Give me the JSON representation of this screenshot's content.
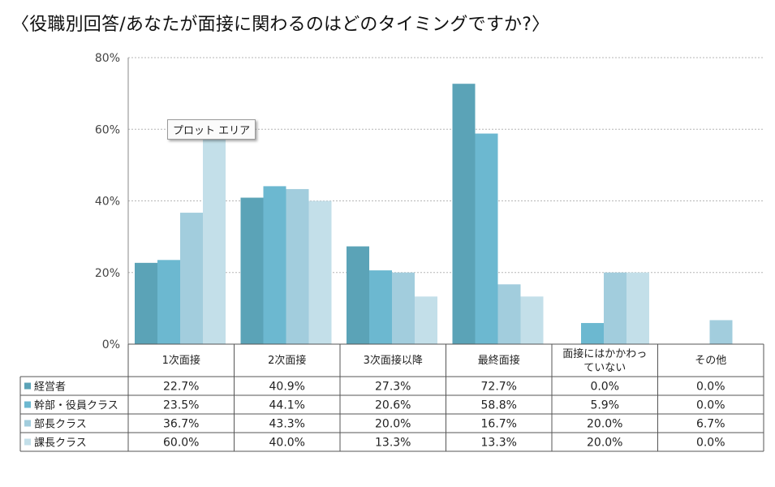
{
  "title": "〈役職別回答/あなたが面接に関わるのはどのタイミングですか?〉",
  "tooltip": "プロット エリア",
  "chart_data": {
    "type": "bar",
    "title": "〈役職別回答/あなたが面接に関わるのはどのタイミングですか?〉",
    "categories": [
      "1次面接",
      "2次面接",
      "3次面接以降",
      "最終面接",
      "面接にはかかわっていない",
      "その他"
    ],
    "category_lines": [
      [
        "1次面接"
      ],
      [
        "2次面接"
      ],
      [
        "3次面接以降"
      ],
      [
        "最終面接"
      ],
      [
        "面接にはかかわっ",
        "ていない"
      ],
      [
        "その他"
      ]
    ],
    "series": [
      {
        "name": "経営者",
        "color": "#5ba3b7",
        "values": [
          22.7,
          40.9,
          27.3,
          72.7,
          0.0,
          0.0
        ]
      },
      {
        "name": "幹部・役員クラス",
        "color": "#6cb8d0",
        "values": [
          23.5,
          44.1,
          20.6,
          58.8,
          5.9,
          0.0
        ]
      },
      {
        "name": "部長クラス",
        "color": "#a2cddd",
        "values": [
          36.7,
          43.3,
          20.0,
          16.7,
          20.0,
          6.7
        ]
      },
      {
        "name": "課長クラス",
        "color": "#c3dfe9",
        "values": [
          60.0,
          40.0,
          13.3,
          13.3,
          20.0,
          0.0
        ]
      }
    ],
    "ylim": [
      0,
      80
    ],
    "yticks": [
      0,
      20,
      40,
      60,
      80
    ],
    "ytick_labels": [
      "0%",
      "20%",
      "40%",
      "60%",
      "80%"
    ],
    "data_table": [
      [
        "22.7%",
        "40.9%",
        "27.3%",
        "72.7%",
        "0.0%",
        "0.0%"
      ],
      [
        "23.5%",
        "44.1%",
        "20.6%",
        "58.8%",
        "5.9%",
        "0.0%"
      ],
      [
        "36.7%",
        "43.3%",
        "20.0%",
        "16.7%",
        "20.0%",
        "6.7%"
      ],
      [
        "60.0%",
        "40.0%",
        "13.3%",
        "13.3%",
        "20.0%",
        "0.0%"
      ]
    ],
    "grid": true,
    "legend": "data-table"
  }
}
